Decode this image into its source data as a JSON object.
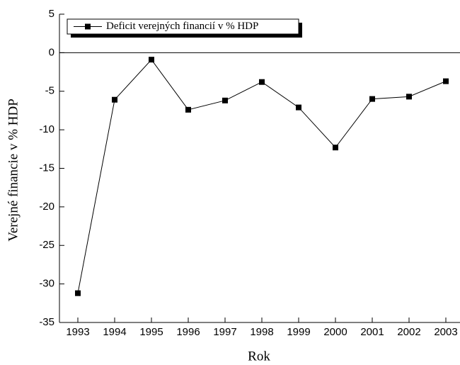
{
  "chart_data": {
    "type": "line",
    "series": [
      {
        "name": "Deficit verejných financií v % HDP",
        "color": "#000000",
        "values": [
          -31.2,
          -6.1,
          -0.9,
          -7.4,
          -6.2,
          -3.8,
          -7.1,
          -12.3,
          -6.0,
          -5.7,
          -3.7
        ]
      }
    ],
    "categories": [
      "1993",
      "1994",
      "1995",
      "1996",
      "1997",
      "1998",
      "1999",
      "2000",
      "2001",
      "2002",
      "2003"
    ],
    "x_label": "Rok",
    "y_label": "Verejné financie v % HDP",
    "ylim": [
      -35,
      5
    ],
    "yticks": [
      -35,
      -30,
      -25,
      -20,
      -15,
      -10,
      -5,
      0,
      5
    ],
    "legend": "top-left"
  }
}
